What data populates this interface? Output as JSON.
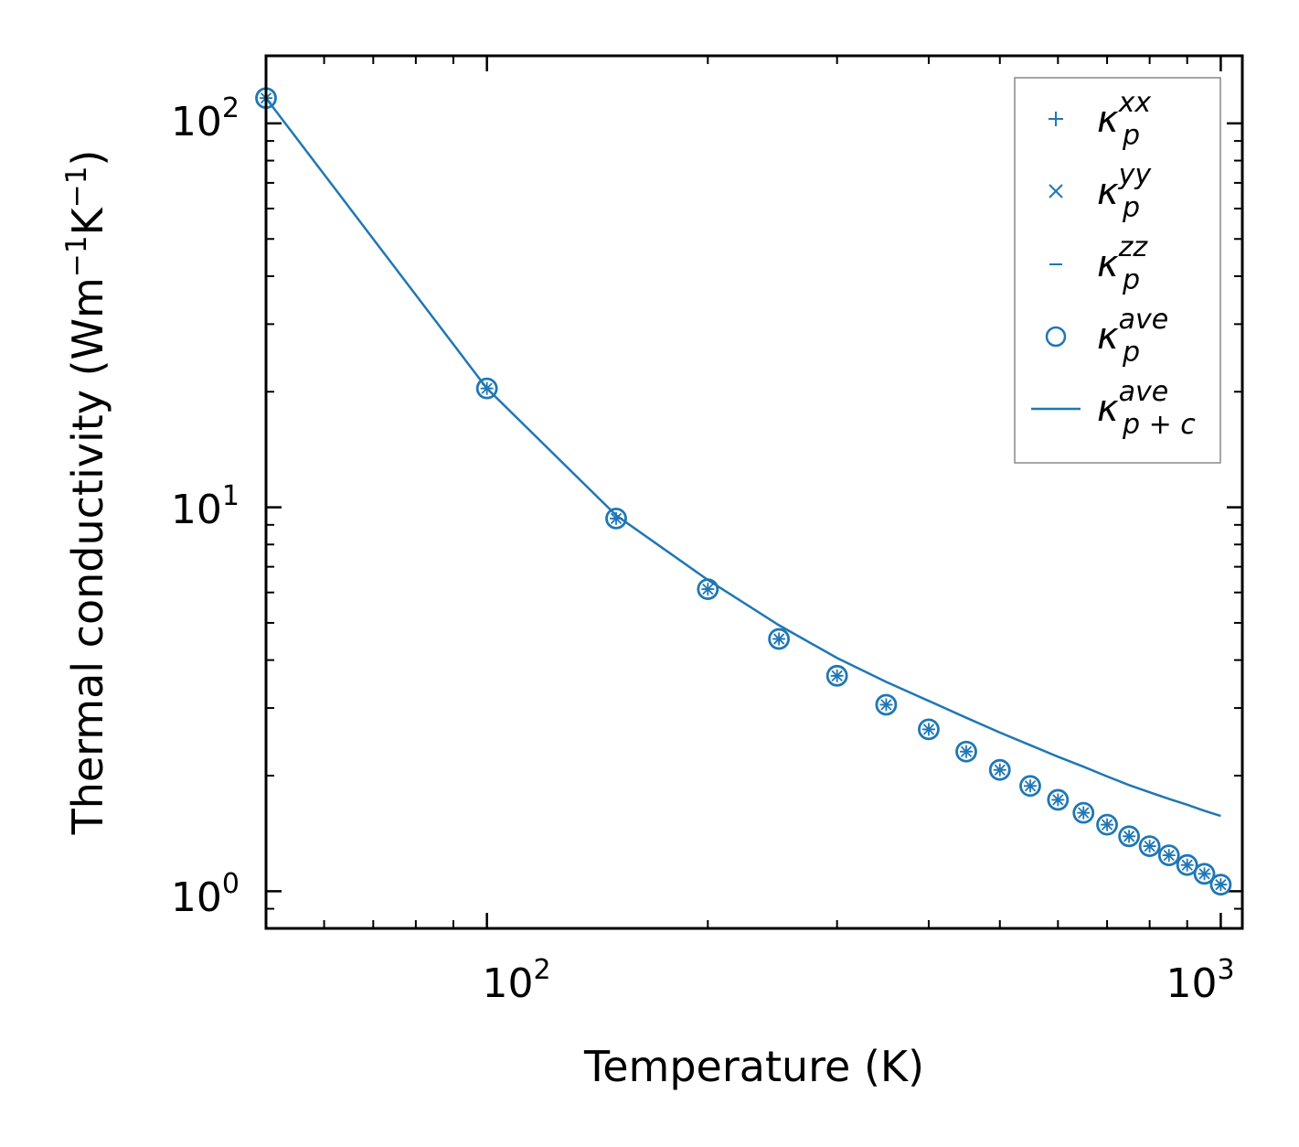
{
  "chart_data": {
    "type": "line",
    "xscale": "log",
    "yscale": "log",
    "xlabel": "Temperature (K)",
    "ylabel_main": "Thermal conductivity (Wm",
    "ylabel_sup1": "−1",
    "ylabel_mid": "K",
    "ylabel_sup2": "−1",
    "ylabel_close": ")",
    "xlim": [
      50,
      1070
    ],
    "ylim": [
      0.8,
      150
    ],
    "xticks": [
      {
        "value": 100,
        "base": "10",
        "exp": "2"
      },
      {
        "value": 1000,
        "base": "10",
        "exp": "3"
      }
    ],
    "yticks": [
      {
        "value": 1,
        "base": "10",
        "exp": "0"
      },
      {
        "value": 10,
        "base": "10",
        "exp": "1"
      },
      {
        "value": 100,
        "base": "10",
        "exp": "2"
      }
    ],
    "color": "#1f77b4",
    "x": [
      50,
      100,
      150,
      200,
      250,
      300,
      350,
      400,
      450,
      500,
      550,
      600,
      650,
      700,
      750,
      800,
      850,
      900,
      950,
      1000
    ],
    "series": [
      {
        "name": "κp^xx",
        "marker": "plus",
        "values": [
          116.4,
          20.4,
          9.35,
          6.12,
          4.54,
          3.64,
          3.06,
          2.64,
          2.31,
          2.07,
          1.88,
          1.73,
          1.6,
          1.49,
          1.39,
          1.31,
          1.24,
          1.17,
          1.11,
          1.04
        ]
      },
      {
        "name": "κp^yy",
        "marker": "x",
        "values": [
          116.4,
          20.4,
          9.35,
          6.12,
          4.54,
          3.64,
          3.06,
          2.64,
          2.31,
          2.07,
          1.88,
          1.73,
          1.6,
          1.49,
          1.39,
          1.31,
          1.24,
          1.17,
          1.11,
          1.04
        ]
      },
      {
        "name": "κp^zz",
        "marker": "hline",
        "values": [
          116.4,
          20.4,
          9.35,
          6.12,
          4.54,
          3.64,
          3.06,
          2.64,
          2.31,
          2.07,
          1.88,
          1.73,
          1.6,
          1.49,
          1.39,
          1.31,
          1.24,
          1.17,
          1.11,
          1.04
        ]
      },
      {
        "name": "κp^ave",
        "marker": "circle",
        "values": [
          116.4,
          20.4,
          9.35,
          6.12,
          4.54,
          3.64,
          3.06,
          2.64,
          2.31,
          2.07,
          1.88,
          1.73,
          1.6,
          1.49,
          1.39,
          1.31,
          1.24,
          1.17,
          1.11,
          1.04
        ]
      },
      {
        "name": "κp+c^ave",
        "marker": "line",
        "values": [
          116.4,
          20.4,
          9.53,
          6.47,
          4.93,
          4.05,
          3.51,
          3.13,
          2.83,
          2.59,
          2.4,
          2.24,
          2.11,
          1.99,
          1.89,
          1.81,
          1.74,
          1.68,
          1.62,
          1.57
        ]
      }
    ],
    "legend": {
      "position": "top-right",
      "entries": [
        {
          "symbol": "+",
          "base": "κ",
          "sup": "xx",
          "sub": "p"
        },
        {
          "symbol": "×",
          "base": "κ",
          "sup": "yy",
          "sub": "p"
        },
        {
          "symbol": "−",
          "base": "κ",
          "sup": "zz",
          "sub": "p"
        },
        {
          "symbol": "○",
          "base": "κ",
          "sup": "ave",
          "sub": "p"
        },
        {
          "symbol": "—",
          "base": "κ",
          "sup": "ave",
          "sub": "p + c"
        }
      ]
    }
  }
}
